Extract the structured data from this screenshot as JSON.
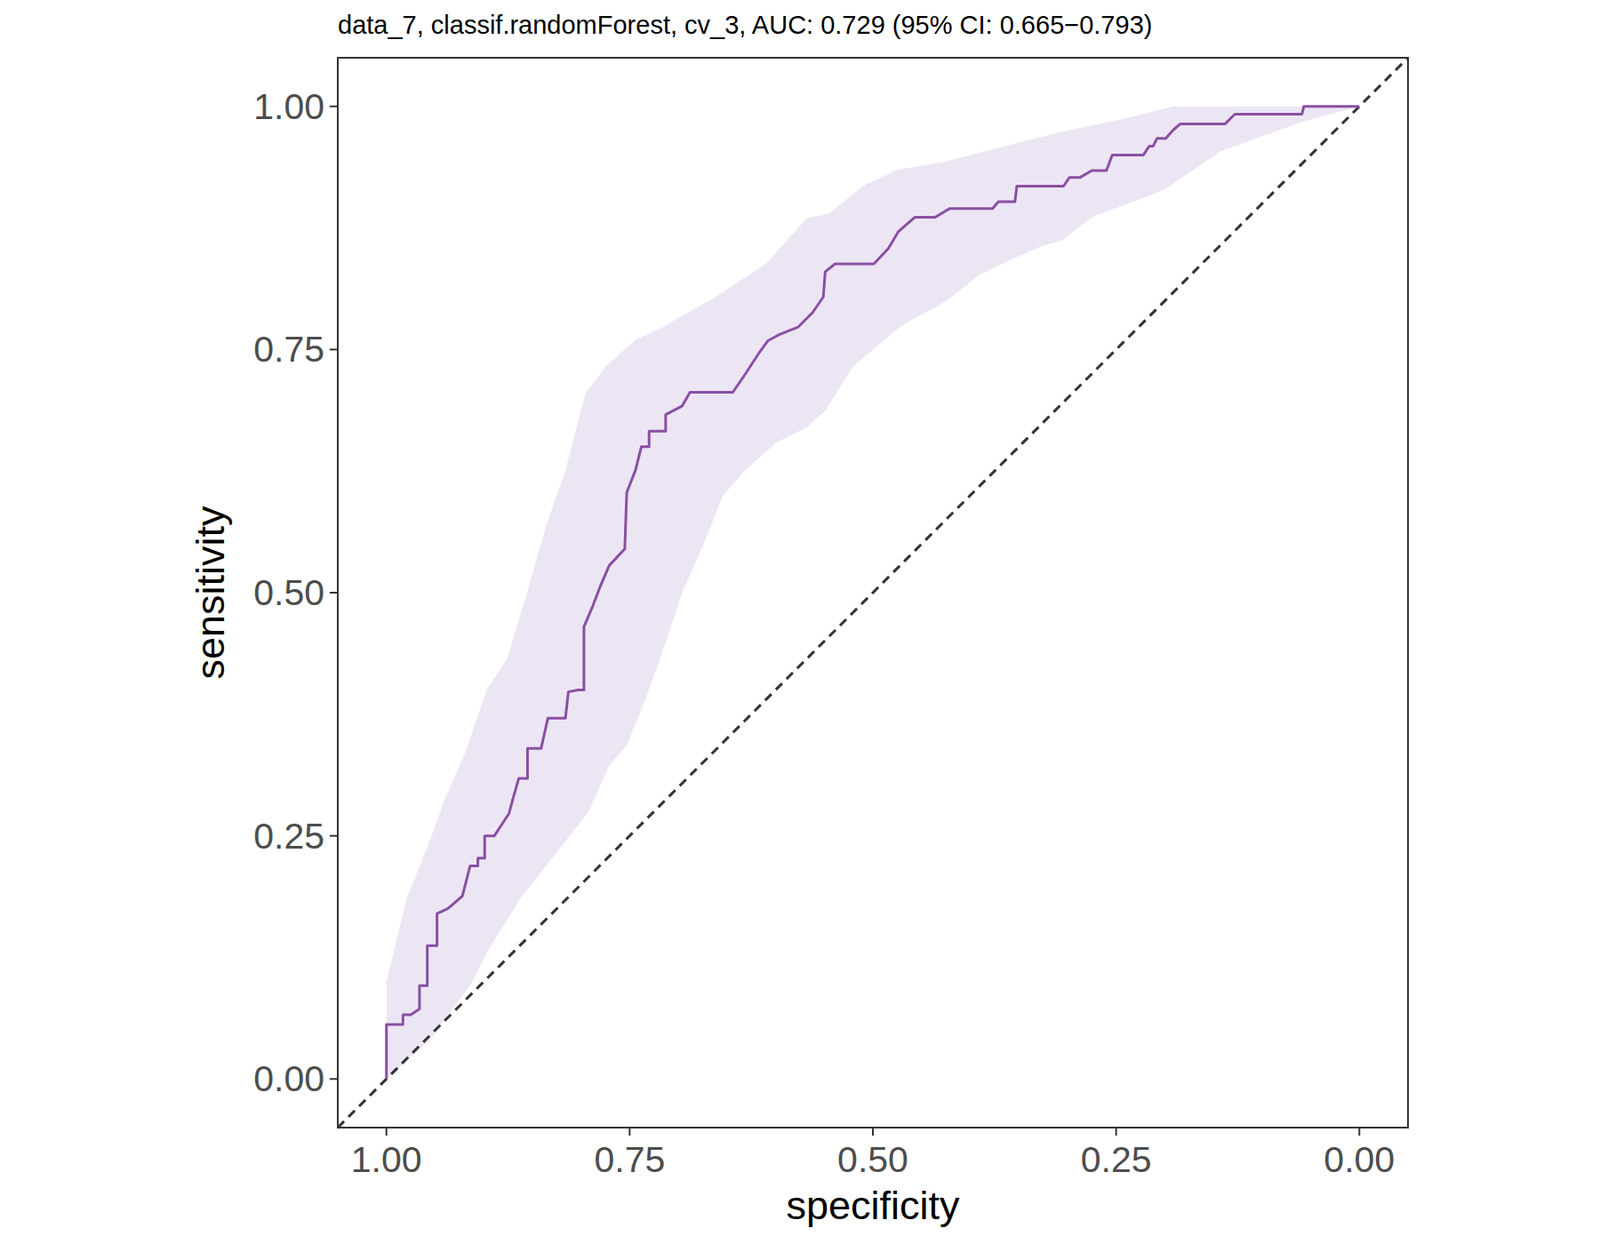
{
  "chart_data": {
    "type": "line",
    "title": "data_7, classif.randomForest, cv_3, AUC: 0.729 (95% CI: 0.665−0.793)",
    "x_label": "specificity",
    "y_label": "sensitivity",
    "xlim": [
      1.05,
      -0.05
    ],
    "ylim": [
      -0.05,
      1.05
    ],
    "xticks": [
      {
        "value": 1,
        "label": "1.00"
      },
      0.75,
      {
        "value": 0.5,
        "label": "0.50"
      },
      0.25,
      {
        "value": 0,
        "label": "0.00"
      }
    ],
    "yticks": [
      {
        "value": 0,
        "label": "0.00"
      },
      0.25,
      {
        "value": 0.5,
        "label": "0.50"
      },
      0.75,
      {
        "value": 1,
        "label": "1.00"
      }
    ],
    "grid": false,
    "x": [
      1,
      1,
      0.983,
      0.983,
      0.975,
      0.966,
      0.966,
      0.958,
      0.958,
      0.948,
      0.948,
      0.937,
      0.922,
      0.914,
      0.906,
      0.906,
      0.899,
      0.899,
      0.889,
      0.874,
      0.87,
      0.864,
      0.855,
      0.855,
      0.841,
      0.834,
      0.816,
      0.813,
      0.803,
      0.797,
      0.797,
      0.788,
      0.78,
      0.771,
      0.755,
      0.753,
      0.744,
      0.738,
      0.73,
      0.73,
      0.713,
      0.713,
      0.696,
      0.688,
      0.644,
      0.631,
      0.616,
      0.608,
      0.597,
      0.577,
      0.562,
      0.551,
      0.549,
      0.539,
      0.499,
      0.484,
      0.474,
      0.457,
      0.436,
      0.421,
      0.377,
      0.371,
      0.354,
      0.352,
      0.304,
      0.298,
      0.287,
      0.275,
      0.26,
      0.254,
      0.222,
      0.216,
      0.212,
      0.208,
      0.199,
      0.191,
      0.184,
      0.138,
      0.128,
      0.059,
      0.057,
      0
    ],
    "series": [
      {
        "color": "#8a4fa3",
        "values": [
          0,
          0.056,
          0.056,
          0.066,
          0.066,
          0.072,
          0.096,
          0.096,
          0.137,
          0.137,
          0.17,
          0.175,
          0.188,
          0.219,
          0.219,
          0.227,
          0.227,
          0.25,
          0.25,
          0.273,
          0.288,
          0.309,
          0.309,
          0.34,
          0.34,
          0.371,
          0.371,
          0.398,
          0.4,
          0.4,
          0.465,
          0.486,
          0.507,
          0.528,
          0.545,
          0.603,
          0.626,
          0.65,
          0.65,
          0.666,
          0.666,
          0.683,
          0.692,
          0.706,
          0.706,
          0.725,
          0.748,
          0.759,
          0.765,
          0.773,
          0.788,
          0.804,
          0.83,
          0.838,
          0.838,
          0.854,
          0.871,
          0.886,
          0.886,
          0.895,
          0.895,
          0.902,
          0.902,
          0.918,
          0.918,
          0.927,
          0.927,
          0.934,
          0.934,
          0.95,
          0.95,
          0.959,
          0.959,
          0.967,
          0.967,
          0.976,
          0.982,
          0.982,
          0.992,
          0.992,
          1,
          1
        ]
      }
    ],
    "ci_band": {
      "color": "#ece6f4",
      "upper_x": [
        1,
        0.979,
        0.958,
        0.939,
        0.918,
        0.897,
        0.876,
        0.857,
        0.836,
        0.816,
        0.795,
        0.774,
        0.744,
        0.716,
        0.662,
        0.61,
        0.568,
        0.545,
        0.509,
        0.474,
        0.426,
        0.369,
        0.306,
        0.243,
        0.191,
        0
      ],
      "upper": [
        0.1,
        0.186,
        0.238,
        0.29,
        0.338,
        0.4,
        0.432,
        0.495,
        0.568,
        0.626,
        0.706,
        0.733,
        0.76,
        0.773,
        0.804,
        0.838,
        0.885,
        0.89,
        0.919,
        0.935,
        0.943,
        0.958,
        0.974,
        0.987,
        1,
        1
      ],
      "lower_x": [
        1,
        0.956,
        0.914,
        0.895,
        0.862,
        0.836,
        0.813,
        0.792,
        0.771,
        0.753,
        0.734,
        0.717,
        0.696,
        0.673,
        0.654,
        0.631,
        0.6,
        0.568,
        0.549,
        0.52,
        0.47,
        0.426,
        0.39,
        0.363,
        0.327,
        0.306,
        0.275,
        0.201,
        0.142,
        0.059,
        0
      ],
      "lower": [
        0,
        0.039,
        0.096,
        0.133,
        0.186,
        0.219,
        0.248,
        0.275,
        0.322,
        0.343,
        0.39,
        0.437,
        0.5,
        0.552,
        0.6,
        0.626,
        0.654,
        0.67,
        0.687,
        0.733,
        0.775,
        0.799,
        0.827,
        0.84,
        0.856,
        0.862,
        0.886,
        0.914,
        0.954,
        0.984,
        1
      ]
    },
    "reference_line": {
      "x": [
        1.05,
        -0.05
      ],
      "values": [
        -0.05,
        1.05
      ],
      "line_style": "dashed",
      "color": "#333333"
    }
  }
}
